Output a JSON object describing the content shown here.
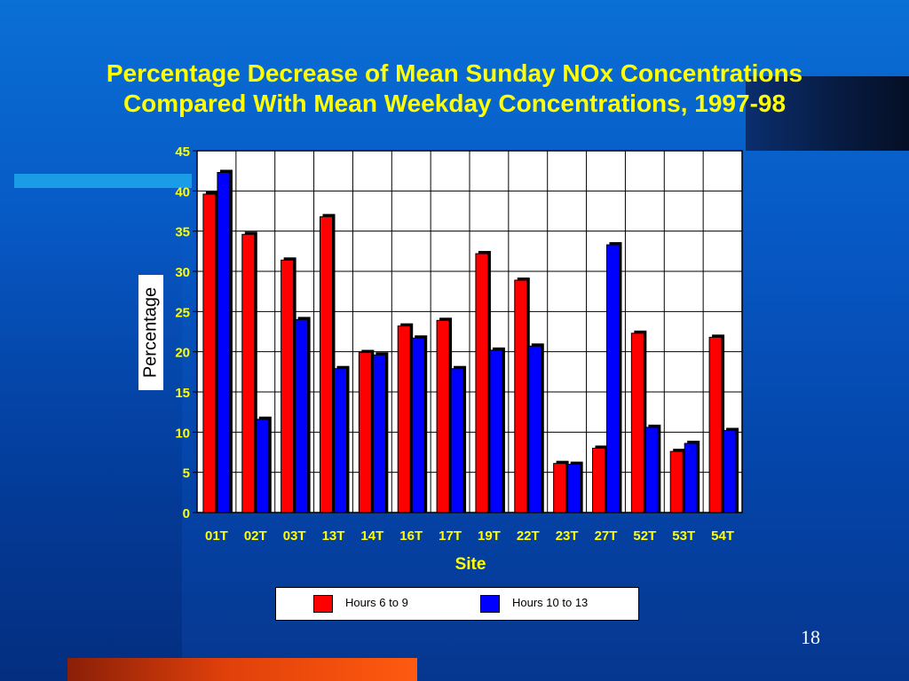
{
  "slide": {
    "title_line1": "Percentage Decrease of Mean Sunday NOx Concentrations",
    "title_line2": "Compared With Mean Weekday Concentrations, 1997-98",
    "page_number": "18"
  },
  "colors": {
    "series1": "#ff0000",
    "series2": "#0000ff",
    "title": "#ffff00",
    "axis_text": "#ffff00"
  },
  "chart_data": {
    "type": "bar",
    "title": "Percentage Decrease of Mean Sunday NOx Concentrations Compared With Mean Weekday Concentrations, 1997-98",
    "xlabel": "Site",
    "ylabel": "Percentage",
    "ylim": [
      0,
      45
    ],
    "yticks": [
      0,
      5,
      10,
      15,
      20,
      25,
      30,
      35,
      40,
      45
    ],
    "grid": true,
    "legend_position": "bottom",
    "categories": [
      "01T",
      "02T",
      "03T",
      "13T",
      "14T",
      "16T",
      "17T",
      "19T",
      "22T",
      "23T",
      "27T",
      "52T",
      "53T",
      "54T"
    ],
    "series": [
      {
        "name": "Hours 6 to 9",
        "color": "#ff0000",
        "values": [
          39.6,
          34.6,
          31.4,
          36.8,
          19.9,
          23.2,
          23.9,
          32.2,
          28.9,
          6.1,
          8.0,
          22.3,
          7.6,
          21.8
        ]
      },
      {
        "name": "Hours 10 to 13",
        "color": "#0000ff",
        "values": [
          42.3,
          11.6,
          24.0,
          17.9,
          19.6,
          21.7,
          17.9,
          20.2,
          20.7,
          6.0,
          33.3,
          10.6,
          8.6,
          10.2
        ]
      }
    ]
  }
}
